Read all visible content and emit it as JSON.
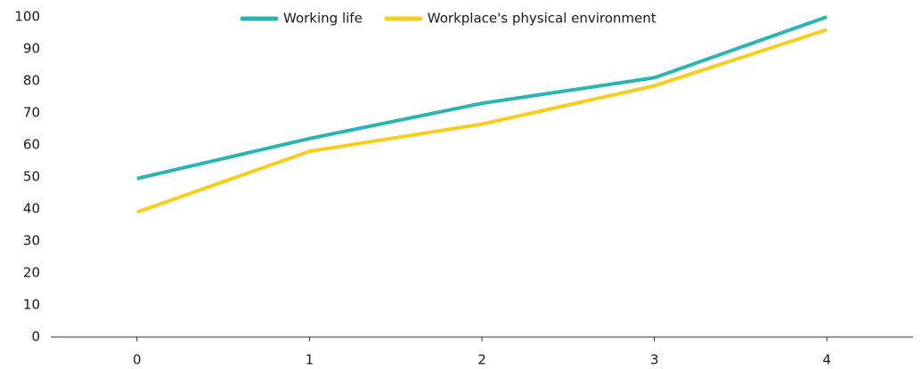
{
  "chart_data": {
    "type": "line",
    "x": [
      0,
      1,
      2,
      3,
      4
    ],
    "series": [
      {
        "name": "Working life",
        "color": "#2bb5b2",
        "values": [
          49.5,
          62,
          73,
          81,
          100
        ]
      },
      {
        "name": "Workplace's physical environment",
        "color": "#f8cd1c",
        "values": [
          39,
          58,
          66.5,
          78.5,
          96
        ]
      }
    ],
    "xlim": [
      -0.5,
      4.5
    ],
    "xticks": [
      0,
      1,
      2,
      3,
      4
    ],
    "ylim": [
      0,
      100
    ],
    "yticks": [
      0,
      10,
      20,
      30,
      40,
      50,
      60,
      70,
      80,
      90,
      100
    ],
    "grid": false,
    "legend": "top"
  }
}
